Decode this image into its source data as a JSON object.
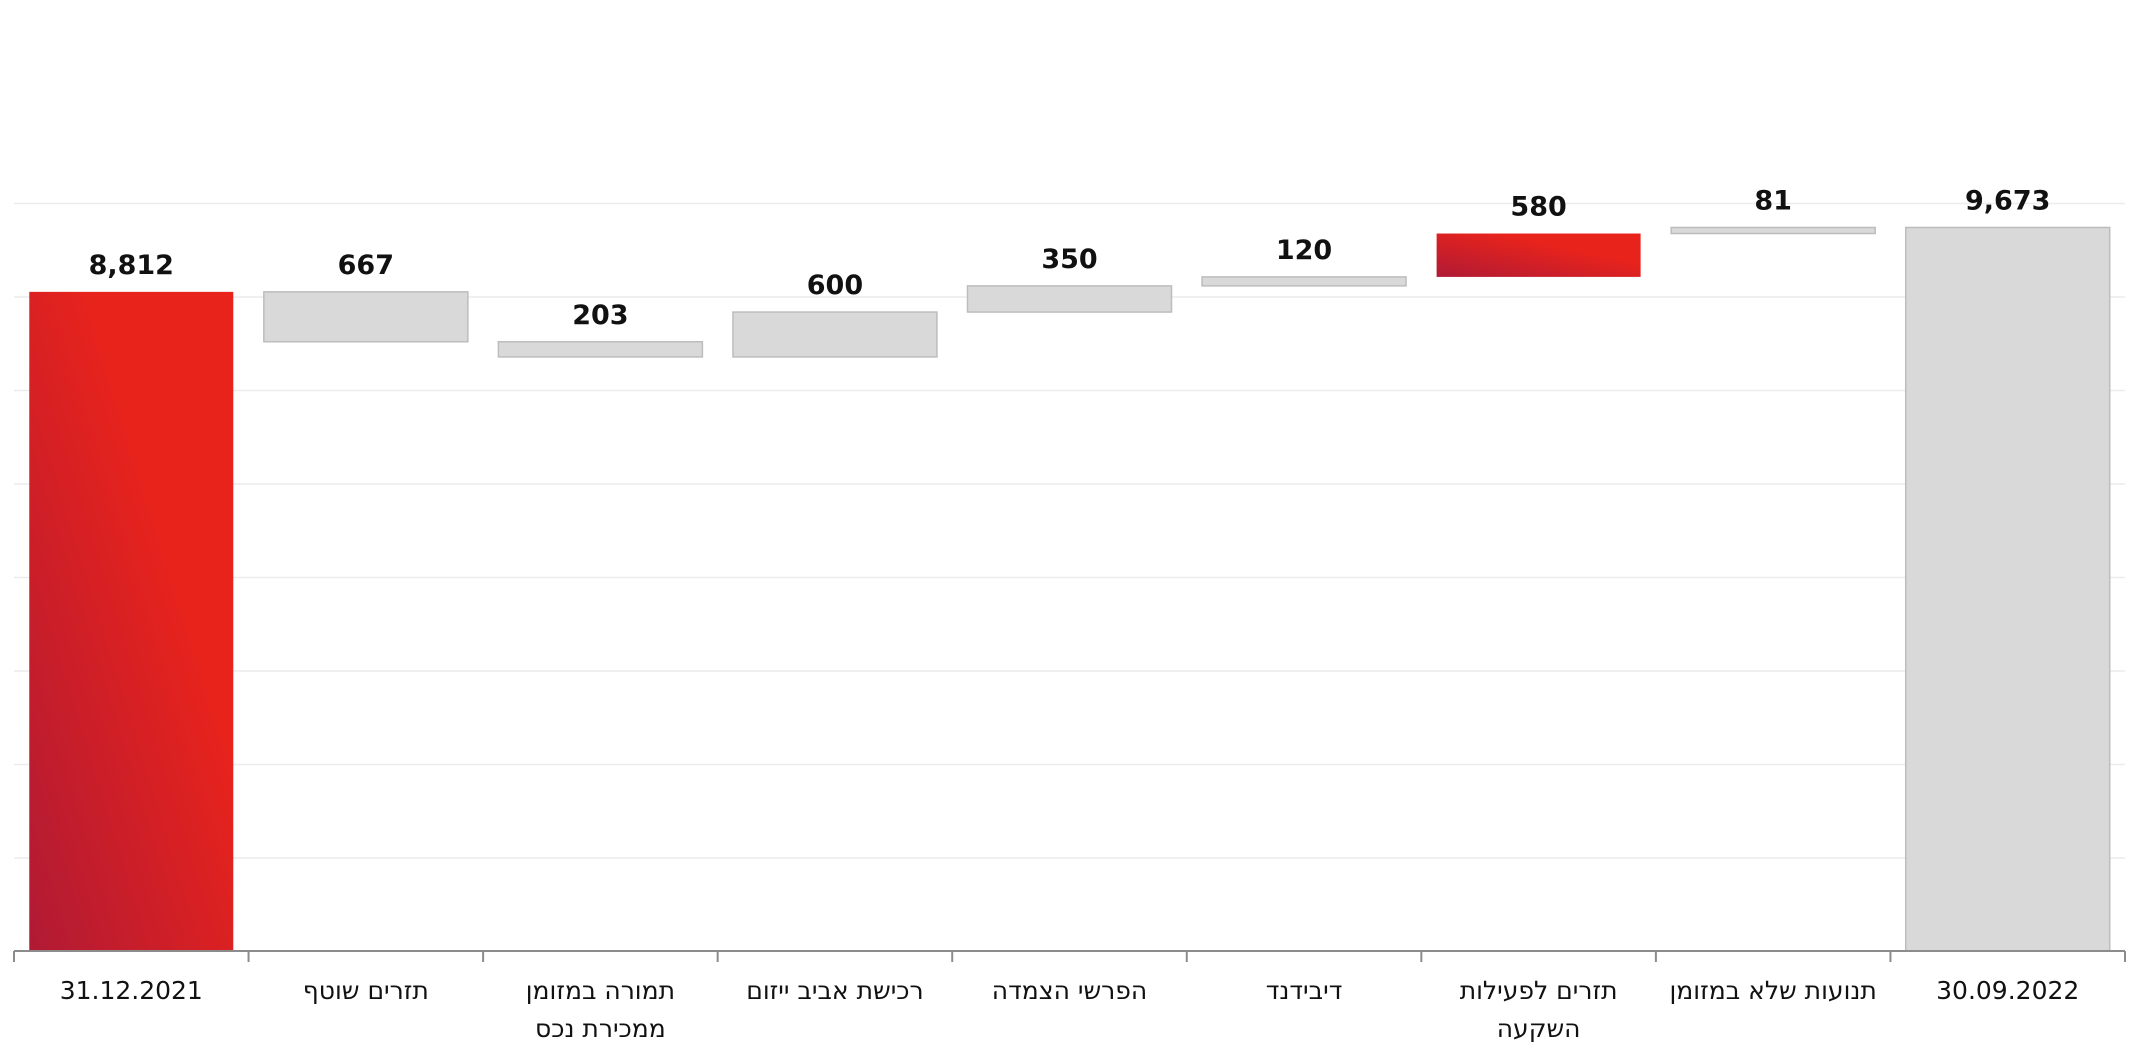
{
  "chart_data": {
    "type": "waterfall",
    "title": "",
    "xlabel": "",
    "ylabel": "",
    "ylim": [
      0,
      10000
    ],
    "grid": true,
    "legend": "none",
    "steps": [
      {
        "category": "31.12.2021",
        "value": 8812,
        "label": "8,812",
        "kind": "total",
        "start": 0,
        "end": 8812
      },
      {
        "category": "תזרים שוטף",
        "value": 667,
        "label": "667",
        "kind": "change",
        "start": 8812,
        "end": 8145
      },
      {
        "category": "תמורה במזומן ממכירת נכס",
        "value": 203,
        "label": "203",
        "kind": "change",
        "start": 8145,
        "end": 7942
      },
      {
        "category": "רכישת אביב ייזום",
        "value": 600,
        "label": "600",
        "kind": "change",
        "start": 7942,
        "end": 8542
      },
      {
        "category": "הפרשי הצמדה",
        "value": 350,
        "label": "350",
        "kind": "change",
        "start": 8542,
        "end": 8892
      },
      {
        "category": "דיבידנד",
        "value": 120,
        "label": "120",
        "kind": "change",
        "start": 8892,
        "end": 9012
      },
      {
        "category": "תזרים לפעילות השקעה",
        "value": 580,
        "label": "580",
        "kind": "change",
        "start": 9012,
        "end": 9592
      },
      {
        "category": "תנועות שלא במזומן",
        "value": 81,
        "label": "81",
        "kind": "change",
        "start": 9592,
        "end": 9673
      },
      {
        "category": "30.09.2022",
        "value": 9673,
        "label": "9,673",
        "kind": "total",
        "start": 0,
        "end": 9673
      }
    ],
    "category_lines": [
      [
        "31.12.2021"
      ],
      [
        "תזרים שוטף"
      ],
      [
        "תמורה במזומן",
        "ממכירת נכס"
      ],
      [
        "רכישת אביב ייזום"
      ],
      [
        "הפרשי הצמדה"
      ],
      [
        "דיבידנד"
      ],
      [
        "תזרים לפעילות",
        "השקעה"
      ],
      [
        "תנועות שלא במזומן"
      ],
      [
        "30.09.2022"
      ]
    ],
    "colors": {
      "highlight_start": "#b01a35",
      "highlight_end": "#e8231c",
      "neutral_bar": "#d9d9d9",
      "neutral_border": "#bdbdbd",
      "gridline": "#ececec",
      "axis": "#8c8c8c",
      "text": "#111111"
    },
    "highlighted_steps": [
      0,
      6
    ]
  }
}
